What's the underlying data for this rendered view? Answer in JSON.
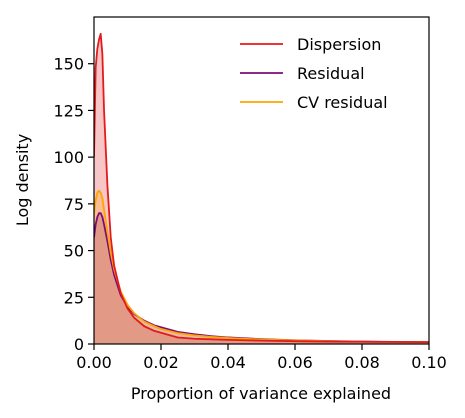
{
  "chart_data": {
    "type": "line",
    "title": "",
    "xlabel": "Proportion of variance explained",
    "ylabel": "Log density",
    "xlim": [
      0.0,
      0.1
    ],
    "ylim": [
      0,
      175
    ],
    "xticks": [
      0.0,
      0.02,
      0.04,
      0.06,
      0.08,
      0.1
    ],
    "xtick_labels": [
      "0.00",
      "0.02",
      "0.04",
      "0.06",
      "0.08",
      "0.10"
    ],
    "yticks": [
      0,
      25,
      50,
      75,
      100,
      125,
      150
    ],
    "ytick_labels": [
      "0",
      "25",
      "50",
      "75",
      "100",
      "125",
      "150"
    ],
    "grid": false,
    "legend_position": "top-right",
    "filled_under_curve": true,
    "series": [
      {
        "name": "Dispersion",
        "color": "#e41a1c",
        "x": [
          0.0,
          0.0005,
          0.001,
          0.0015,
          0.002,
          0.0025,
          0.003,
          0.004,
          0.005,
          0.006,
          0.008,
          0.01,
          0.012,
          0.015,
          0.018,
          0.02,
          0.025,
          0.03,
          0.035,
          0.04,
          0.05,
          0.06,
          0.07,
          0.08,
          0.09,
          0.1
        ],
        "values": [
          100,
          148,
          158,
          163,
          166,
          155,
          125,
          85,
          57,
          42,
          27,
          19,
          14,
          9.5,
          7,
          6,
          3.5,
          2.8,
          2.5,
          2.2,
          1.8,
          1.5,
          1.3,
          1.2,
          1.1,
          1.0
        ]
      },
      {
        "name": "Residual",
        "color": "#7b0d7b",
        "x": [
          0.0,
          0.0005,
          0.001,
          0.0015,
          0.002,
          0.0025,
          0.003,
          0.004,
          0.005,
          0.006,
          0.008,
          0.01,
          0.012,
          0.015,
          0.018,
          0.02,
          0.025,
          0.03,
          0.035,
          0.04,
          0.05,
          0.06,
          0.07,
          0.08,
          0.09,
          0.1
        ],
        "values": [
          57,
          64,
          68,
          70,
          70,
          68,
          64,
          55,
          45,
          37,
          26,
          20,
          16,
          12.5,
          10,
          9,
          6.5,
          5.2,
          4.2,
          3.5,
          2.6,
          2.0,
          1.6,
          1.3,
          1.1,
          1.0
        ]
      },
      {
        "name": "CV residual",
        "color": "#ffa500",
        "x": [
          0.0,
          0.0005,
          0.001,
          0.0015,
          0.002,
          0.0025,
          0.003,
          0.004,
          0.005,
          0.006,
          0.008,
          0.01,
          0.012,
          0.015,
          0.018,
          0.02,
          0.025,
          0.03,
          0.035,
          0.04,
          0.05,
          0.06,
          0.07,
          0.08,
          0.09,
          0.1
        ],
        "values": [
          70,
          77,
          81,
          82,
          81,
          78,
          72,
          60,
          49,
          40,
          28,
          21,
          16.5,
          12,
          9.5,
          8,
          5.8,
          4.6,
          3.8,
          3.2,
          2.4,
          1.9,
          1.5,
          1.2,
          1.0,
          0.9
        ]
      }
    ]
  }
}
